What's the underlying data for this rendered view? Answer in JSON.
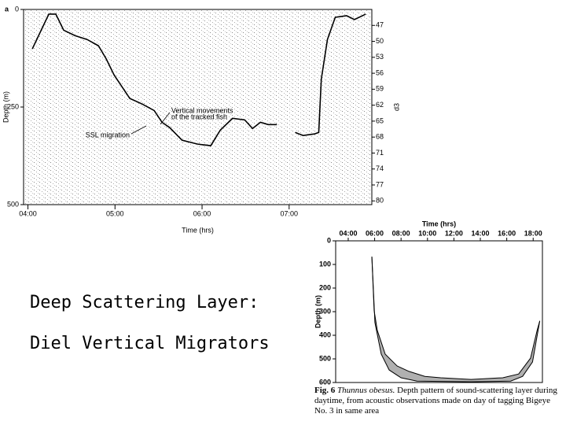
{
  "slide": {
    "lines": [
      "Deep Scattering Layer:",
      "Diel Vertical Migrators"
    ]
  },
  "chart_data": [
    {
      "type": "line",
      "panel_label": "a",
      "xlabel": "Time (hrs)",
      "ylabel": "Depth (m)",
      "y2label": "d3",
      "xlim": [
        3.95,
        7.95
      ],
      "xticks": [
        {
          "value": 4,
          "label": "04:00"
        },
        {
          "value": 5,
          "label": "05:00"
        },
        {
          "value": 6,
          "label": "06:00"
        },
        {
          "value": 7,
          "label": "07:00"
        }
      ],
      "ylim": [
        0,
        500
      ],
      "yticks": [
        0,
        250,
        500
      ],
      "y_inverted": true,
      "y2lim": [
        44,
        80.7
      ],
      "y2ticks": [
        47,
        50,
        53,
        56,
        59,
        62,
        65,
        68,
        71,
        74,
        77,
        80
      ],
      "annotations": [
        "Vertical movements",
        "of the tracked fish",
        "SSL migration"
      ],
      "series": [
        {
          "color": "#000000",
          "x": [
            4.05,
            4.24,
            4.32,
            4.41,
            4.54,
            4.68,
            4.81,
            4.9,
            4.99,
            5.08,
            5.17,
            5.31,
            5.45,
            5.54,
            5.63,
            5.77,
            5.95,
            6.1,
            6.21,
            6.35,
            6.49,
            6.58,
            6.67,
            6.76,
            6.86,
            6.95,
            7.07,
            7.16,
            7.29,
            7.34,
            7.37,
            7.44,
            7.53,
            7.66,
            7.75,
            7.88
          ],
          "values": [
            101,
            12,
            12,
            53,
            67,
            77,
            93,
            127,
            168,
            198,
            228,
            242,
            259,
            289,
            303,
            335,
            345,
            349,
            309,
            279,
            283,
            305,
            289,
            295,
            295,
            null,
            315,
            323,
            319,
            315,
            178,
            77,
            20,
            16,
            26,
            12
          ]
        }
      ]
    },
    {
      "type": "line",
      "xlabel": "Time (hrs)",
      "ylabel": "Depth (m)",
      "xaxis_position": "top",
      "xlim": [
        3.05,
        18.7
      ],
      "xticks": [
        {
          "value": 4,
          "label": "04:00"
        },
        {
          "value": 6,
          "label": "06:00"
        },
        {
          "value": 8,
          "label": "08:00"
        },
        {
          "value": 10,
          "label": "10:00"
        },
        {
          "value": 12,
          "label": "12:00"
        },
        {
          "value": 14,
          "label": "14:00"
        },
        {
          "value": 16,
          "label": "16:00"
        },
        {
          "value": 18,
          "label": "18:00"
        }
      ],
      "ylim": [
        0,
        600
      ],
      "yticks": [
        0,
        100,
        200,
        300,
        400,
        500,
        600
      ],
      "y_inverted": true,
      "fill_between": "#b0b0b0",
      "series": [
        {
          "color": "#000000",
          "x": [
            5.79,
            5.96,
            6.2,
            6.8,
            7.7,
            8.6,
            9.8,
            11,
            13.3,
            15.7,
            16.9,
            17.8,
            18.3,
            18.5
          ],
          "values": [
            67,
            295,
            379,
            480,
            530,
            553,
            574,
            580,
            587,
            580,
            564,
            497,
            379,
            339
          ]
        },
        {
          "color": "#000000",
          "x": [
            5.79,
            6.02,
            6.5,
            7.1,
            8,
            9.2,
            13.3,
            16.3,
            17.2,
            17.95,
            18.5
          ],
          "values": [
            67,
            346,
            480,
            547,
            580,
            594,
            597,
            594,
            574,
            513,
            339
          ]
        }
      ],
      "caption": {
        "label": "Fig. 6",
        "species": "Thunnus obesus.",
        "text": "Depth pattern of sound-scattering layer during daytime, from acoustic observations made on day of tagging Bigeye No. 3 in same area"
      }
    }
  ]
}
